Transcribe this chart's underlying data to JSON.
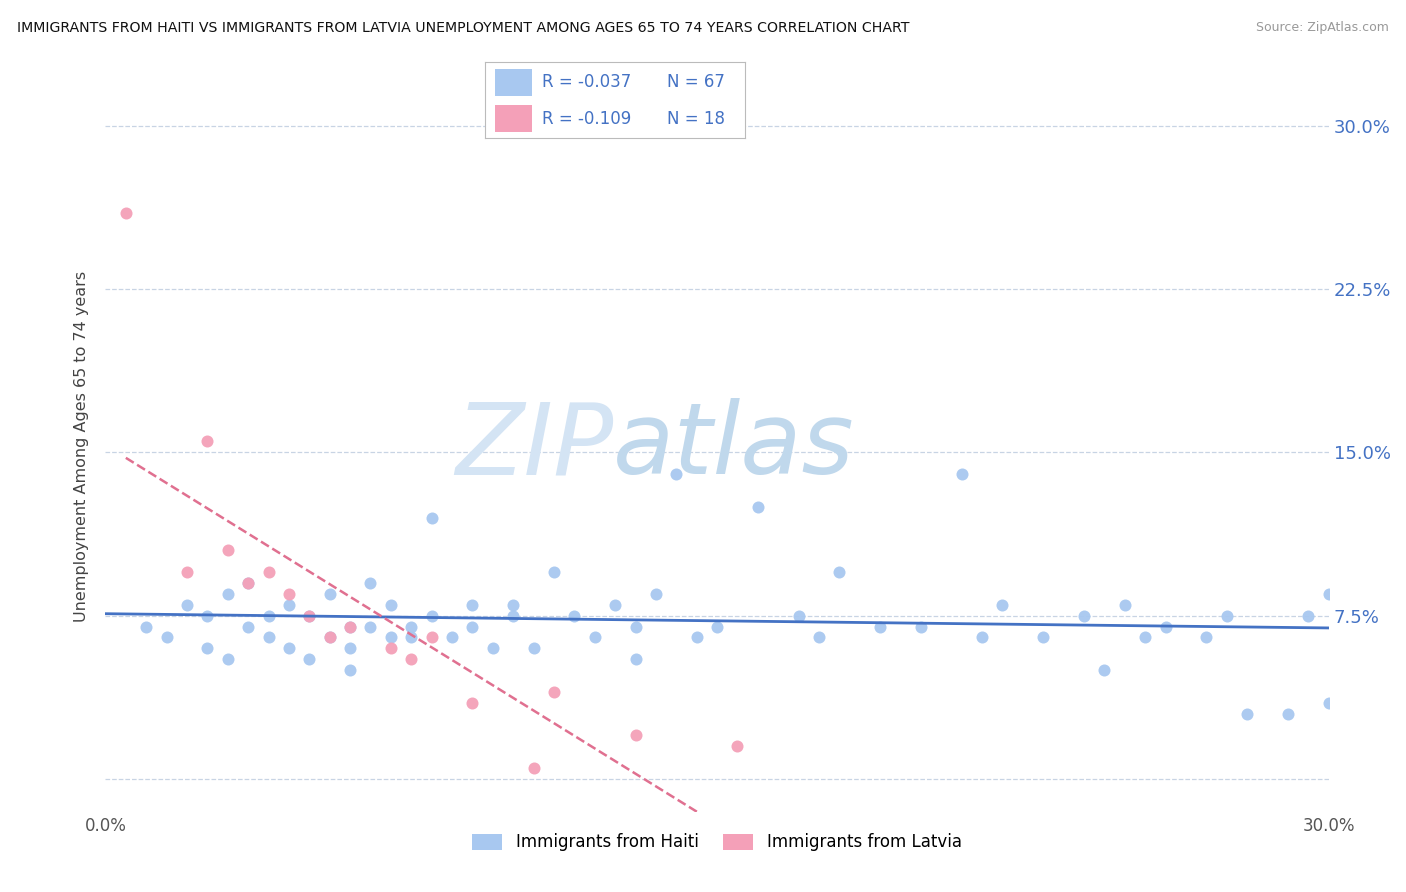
{
  "title": "IMMIGRANTS FROM HAITI VS IMMIGRANTS FROM LATVIA UNEMPLOYMENT AMONG AGES 65 TO 74 YEARS CORRELATION CHART",
  "source": "Source: ZipAtlas.com",
  "ylabel": "Unemployment Among Ages 65 to 74 years",
  "xlim": [
    0.0,
    30.0
  ],
  "ylim": [
    -1.5,
    32.0
  ],
  "yticks": [
    0.0,
    7.5,
    15.0,
    22.5,
    30.0
  ],
  "ytick_labels": [
    "",
    "7.5%",
    "15.0%",
    "22.5%",
    "30.0%"
  ],
  "legend_haiti_r": "-0.037",
  "legend_haiti_n": "67",
  "legend_latvia_r": "-0.109",
  "legend_latvia_n": "18",
  "haiti_color": "#a8c8f0",
  "latvia_color": "#f4a0b8",
  "haiti_line_color": "#4472c4",
  "latvia_line_color": "#e07090",
  "watermark_color": "#dce8f4",
  "background_color": "#ffffff",
  "grid_color": "#c8d4e4",
  "haiti_x": [
    1.0,
    1.5,
    2.0,
    2.5,
    2.5,
    3.0,
    3.0,
    3.5,
    3.5,
    4.0,
    4.0,
    4.5,
    4.5,
    5.0,
    5.0,
    5.5,
    5.5,
    6.0,
    6.0,
    6.0,
    6.5,
    6.5,
    7.0,
    7.0,
    7.5,
    7.5,
    8.0,
    8.0,
    8.5,
    9.0,
    9.0,
    9.5,
    10.0,
    10.0,
    10.5,
    11.0,
    11.5,
    12.0,
    12.5,
    13.0,
    13.0,
    13.5,
    14.0,
    14.5,
    15.0,
    16.0,
    17.0,
    17.5,
    18.0,
    19.0,
    20.0,
    21.0,
    21.5,
    22.0,
    23.0,
    24.0,
    24.5,
    25.0,
    25.5,
    26.0,
    27.0,
    27.5,
    28.0,
    29.0,
    29.5,
    30.0,
    30.0
  ],
  "haiti_y": [
    7.0,
    6.5,
    8.0,
    7.5,
    6.0,
    8.5,
    5.5,
    7.0,
    9.0,
    6.5,
    7.5,
    8.0,
    6.0,
    7.5,
    5.5,
    6.5,
    8.5,
    7.0,
    6.0,
    5.0,
    7.0,
    9.0,
    6.5,
    8.0,
    7.0,
    6.5,
    12.0,
    7.5,
    6.5,
    8.0,
    7.0,
    6.0,
    8.0,
    7.5,
    6.0,
    9.5,
    7.5,
    6.5,
    8.0,
    5.5,
    7.0,
    8.5,
    14.0,
    6.5,
    7.0,
    12.5,
    7.5,
    6.5,
    9.5,
    7.0,
    7.0,
    14.0,
    6.5,
    8.0,
    6.5,
    7.5,
    5.0,
    8.0,
    6.5,
    7.0,
    6.5,
    7.5,
    3.0,
    3.0,
    7.5,
    8.5,
    3.5
  ],
  "latvia_x": [
    0.5,
    2.0,
    2.5,
    3.0,
    3.5,
    4.0,
    4.5,
    5.0,
    5.5,
    6.0,
    7.0,
    7.5,
    8.0,
    9.0,
    10.5,
    11.0,
    13.0,
    15.5
  ],
  "latvia_y": [
    26.0,
    9.5,
    15.5,
    10.5,
    9.0,
    9.5,
    8.5,
    7.5,
    6.5,
    7.0,
    6.0,
    5.5,
    6.5,
    3.5,
    0.5,
    4.0,
    2.0,
    1.5
  ]
}
